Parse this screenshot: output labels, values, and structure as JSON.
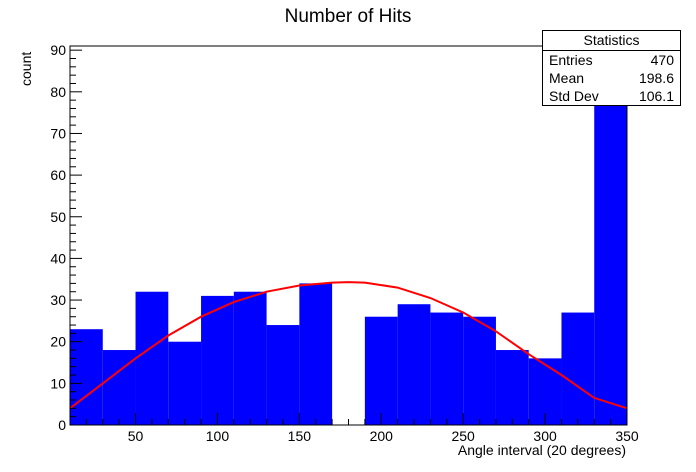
{
  "chart_data": {
    "type": "bar",
    "title": "Number of Hits",
    "xlabel": "Angle interval (20 degrees)",
    "ylabel": "count",
    "xlim": [
      10,
      350
    ],
    "ylim": [
      0,
      91
    ],
    "xticks": [
      50,
      100,
      150,
      200,
      250,
      300,
      350
    ],
    "yticks": [
      0,
      10,
      20,
      30,
      40,
      50,
      60,
      70,
      80,
      90
    ],
    "bin_edges": [
      10,
      30,
      50,
      70,
      90,
      110,
      130,
      150,
      170,
      190,
      210,
      230,
      250,
      270,
      290,
      310,
      330,
      350
    ],
    "values": [
      23,
      18,
      32,
      20,
      31,
      32,
      24,
      34,
      0,
      26,
      29,
      27,
      26,
      18,
      16,
      27,
      80
    ],
    "series": [
      {
        "type": "histogram",
        "color": "#0000ff"
      },
      {
        "type": "fit-curve",
        "color": "#ff0000",
        "x": [
          10,
          30,
          50,
          70,
          90,
          110,
          130,
          150,
          170,
          180,
          190,
          210,
          230,
          250,
          270,
          290,
          310,
          330,
          350
        ],
        "y": [
          4,
          10,
          16,
          21.5,
          26,
          29.5,
          32,
          33.5,
          34.2,
          34.3,
          34.2,
          33,
          30.5,
          27,
          22.5,
          17,
          12,
          6.5,
          4
        ]
      }
    ],
    "stats": {
      "title": "Statistics",
      "rows": [
        {
          "label": "Entries",
          "value": "470"
        },
        {
          "label": "Mean",
          "value": "198.6"
        },
        {
          "label": "Std Dev",
          "value": "106.1"
        }
      ]
    },
    "grid": false,
    "legend": "top-right"
  }
}
